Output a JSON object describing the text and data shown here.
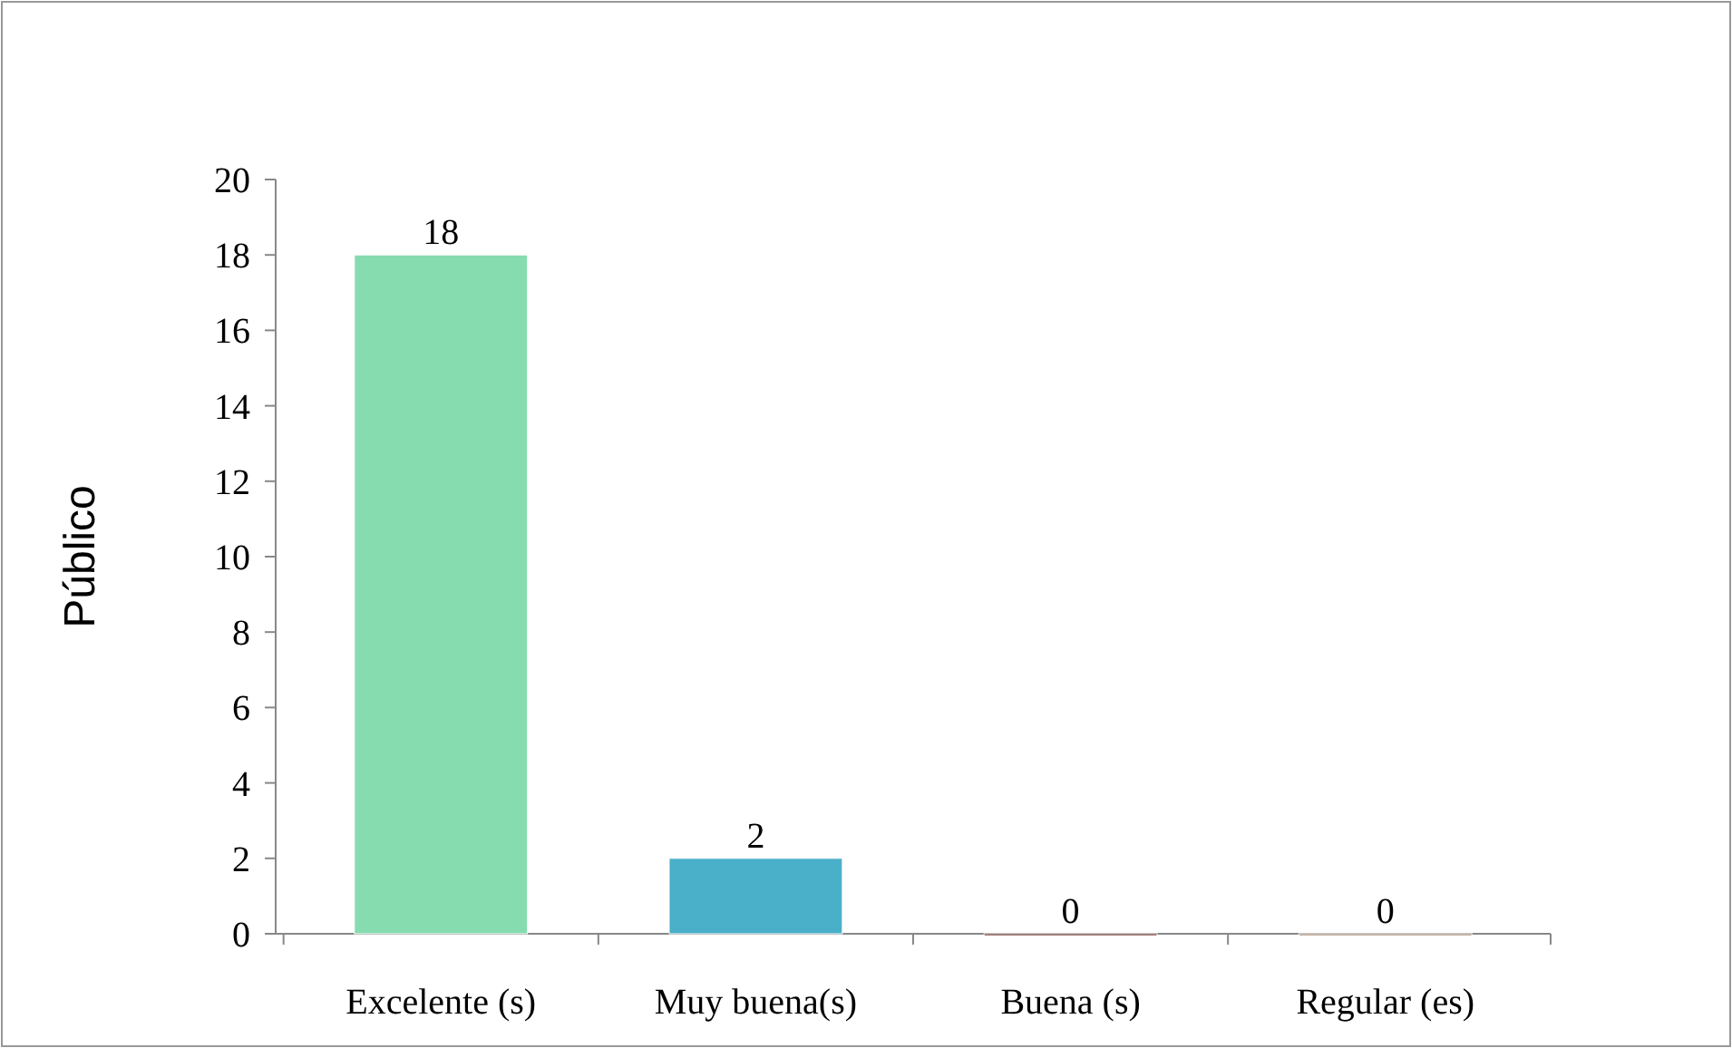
{
  "chart_data": {
    "type": "bar",
    "ylabel": "Público",
    "categories": [
      "Excelente (s)",
      "Muy buena(s)",
      "Buena (s)",
      "Regular (es)"
    ],
    "values": [
      18,
      2,
      0,
      0
    ],
    "colors": [
      "#86dcae",
      "#4aafc8",
      "#4a0000",
      "#8c6a50"
    ],
    "ylim": [
      0,
      20
    ],
    "yticks": [
      0,
      2,
      4,
      6,
      8,
      10,
      12,
      14,
      16,
      18,
      20
    ],
    "data_labels": true,
    "grid": false
  }
}
